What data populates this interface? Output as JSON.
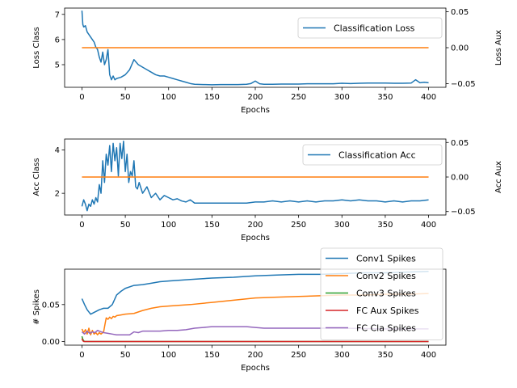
{
  "chart_data": [
    {
      "type": "line",
      "xlabel": "Epochs",
      "ylabel": "Loss Class",
      "ylabel_right": "Loss Aux",
      "xlim": [
        -20,
        420
      ],
      "ylim": [
        4.1,
        7.25
      ],
      "ylim_right": [
        -0.055,
        0.055
      ],
      "x_ticks": [
        0,
        50,
        100,
        150,
        200,
        250,
        300,
        350,
        400
      ],
      "y_ticks": [
        5,
        6,
        7
      ],
      "y_ticks_right": [
        "0.05",
        "0.00",
        "−0.05"
      ],
      "y_ticks_right_values": [
        0.05,
        0.0,
        -0.05
      ],
      "legend": {
        "entries": [
          "Classification Loss"
        ],
        "placement": "upper right"
      },
      "series": [
        {
          "name": "Classification Loss",
          "color": "#1f77b4",
          "axis": "left",
          "x": [
            0,
            1,
            2,
            4,
            6,
            8,
            10,
            12,
            14,
            16,
            18,
            20,
            22,
            24,
            26,
            28,
            30,
            32,
            34,
            36,
            38,
            40,
            45,
            50,
            55,
            60,
            65,
            70,
            75,
            80,
            85,
            90,
            95,
            100,
            105,
            110,
            115,
            120,
            125,
            130,
            140,
            150,
            160,
            170,
            180,
            190,
            195,
            200,
            205,
            210,
            220,
            230,
            240,
            250,
            260,
            270,
            280,
            290,
            300,
            310,
            320,
            330,
            340,
            350,
            360,
            370,
            380,
            385,
            390,
            395,
            400
          ],
          "y": [
            7.15,
            6.6,
            6.5,
            6.55,
            6.3,
            6.2,
            6.1,
            6.0,
            5.9,
            5.7,
            5.6,
            5.3,
            5.1,
            5.5,
            5.0,
            5.2,
            5.6,
            4.6,
            4.4,
            4.55,
            4.4,
            4.45,
            4.5,
            4.6,
            4.8,
            5.2,
            5.0,
            4.9,
            4.8,
            4.7,
            4.6,
            4.55,
            4.55,
            4.5,
            4.45,
            4.4,
            4.35,
            4.3,
            4.25,
            4.22,
            4.21,
            4.2,
            4.21,
            4.21,
            4.21,
            4.22,
            4.25,
            4.35,
            4.24,
            4.22,
            4.22,
            4.23,
            4.23,
            4.23,
            4.24,
            4.24,
            4.24,
            4.24,
            4.26,
            4.25,
            4.26,
            4.27,
            4.27,
            4.27,
            4.26,
            4.26,
            4.27,
            4.4,
            4.28,
            4.3,
            4.28
          ]
        },
        {
          "name": "Loss Aux",
          "color": "#ff7f0e",
          "axis": "right",
          "x": [
            0,
            400
          ],
          "y": [
            0.0,
            0.0
          ]
        }
      ]
    },
    {
      "type": "line",
      "xlabel": "Epochs",
      "ylabel": "Acc Class",
      "ylabel_right": "Acc Aux",
      "xlim": [
        -20,
        420
      ],
      "ylim": [
        1.0,
        4.5
      ],
      "ylim_right": [
        -0.055,
        0.055
      ],
      "x_ticks": [
        0,
        50,
        100,
        150,
        200,
        250,
        300,
        350,
        400
      ],
      "y_ticks": [
        2,
        4
      ],
      "y_ticks_right": [
        "0.05",
        "0.00",
        "−0.05"
      ],
      "y_ticks_right_values": [
        0.05,
        0.0,
        -0.05
      ],
      "legend": {
        "entries": [
          "Classification Acc"
        ],
        "placement": "upper right"
      },
      "series": [
        {
          "name": "Classification Acc",
          "color": "#1f77b4",
          "axis": "left",
          "x": [
            0,
            2,
            4,
            6,
            8,
            10,
            12,
            14,
            16,
            18,
            20,
            22,
            24,
            26,
            28,
            30,
            32,
            34,
            36,
            38,
            40,
            42,
            44,
            46,
            48,
            50,
            52,
            54,
            56,
            58,
            60,
            62,
            64,
            66,
            70,
            75,
            80,
            85,
            90,
            95,
            100,
            105,
            110,
            115,
            120,
            125,
            130,
            140,
            150,
            160,
            170,
            180,
            190,
            200,
            210,
            220,
            230,
            240,
            250,
            260,
            270,
            280,
            290,
            300,
            310,
            320,
            330,
            340,
            350,
            360,
            370,
            380,
            390,
            400
          ],
          "y": [
            1.4,
            1.7,
            1.5,
            1.2,
            1.5,
            1.4,
            1.7,
            1.5,
            1.8,
            1.6,
            2.4,
            2.0,
            3.5,
            2.5,
            3.8,
            3.3,
            4.2,
            3.0,
            4.3,
            3.5,
            4.1,
            2.8,
            4.3,
            3.6,
            4.4,
            3.0,
            3.8,
            2.5,
            3.0,
            2.8,
            3.5,
            2.3,
            2.2,
            2.5,
            2.0,
            2.3,
            1.8,
            2.0,
            1.7,
            1.9,
            1.8,
            1.7,
            1.75,
            1.65,
            1.6,
            1.7,
            1.55,
            1.55,
            1.55,
            1.55,
            1.55,
            1.55,
            1.55,
            1.6,
            1.6,
            1.65,
            1.6,
            1.65,
            1.6,
            1.65,
            1.6,
            1.65,
            1.65,
            1.7,
            1.65,
            1.7,
            1.65,
            1.65,
            1.6,
            1.65,
            1.6,
            1.65,
            1.65,
            1.7
          ]
        },
        {
          "name": "Acc Aux",
          "color": "#ff7f0e",
          "axis": "right",
          "x": [
            0,
            400
          ],
          "y": [
            0.0,
            0.0
          ]
        }
      ]
    },
    {
      "type": "line",
      "xlabel": "Epochs",
      "ylabel": "# Spikes",
      "xlim": [
        -20,
        420
      ],
      "ylim": [
        -0.005,
        0.098
      ],
      "x_ticks": [
        0,
        50,
        100,
        150,
        200,
        250,
        300,
        350,
        400
      ],
      "y_ticks": [
        0.0,
        0.05
      ],
      "y_tick_labels": [
        "0.00",
        "0.05"
      ],
      "legend": {
        "entries": [
          "Conv1 Spikes",
          "Conv2 Spikes",
          "Conv3 Spikes",
          "FC Aux Spikes",
          "FC Cla Spikes"
        ],
        "placement": "upper right"
      },
      "series": [
        {
          "name": "Conv1 Spikes",
          "color": "#1f77b4",
          "x": [
            0,
            3,
            6,
            10,
            15,
            20,
            25,
            30,
            35,
            40,
            45,
            50,
            60,
            70,
            80,
            90,
            100,
            125,
            150,
            175,
            200,
            225,
            250,
            275,
            300,
            325,
            350,
            375,
            400
          ],
          "y": [
            0.058,
            0.05,
            0.043,
            0.037,
            0.04,
            0.043,
            0.045,
            0.045,
            0.05,
            0.063,
            0.068,
            0.072,
            0.076,
            0.077,
            0.079,
            0.081,
            0.082,
            0.084,
            0.086,
            0.087,
            0.089,
            0.09,
            0.091,
            0.091,
            0.092,
            0.093,
            0.093,
            0.094,
            0.095
          ]
        },
        {
          "name": "Conv2 Spikes",
          "color": "#ff7f0e",
          "x": [
            0,
            2,
            4,
            6,
            8,
            10,
            12,
            14,
            16,
            18,
            20,
            22,
            25,
            27,
            28,
            30,
            32,
            34,
            36,
            38,
            40,
            45,
            50,
            60,
            70,
            80,
            90,
            100,
            125,
            150,
            175,
            200,
            225,
            250,
            275,
            300,
            325,
            350,
            375,
            400
          ],
          "y": [
            0.017,
            0.012,
            0.016,
            0.01,
            0.018,
            0.009,
            0.015,
            0.01,
            0.012,
            0.009,
            0.012,
            0.01,
            0.013,
            0.026,
            0.032,
            0.03,
            0.033,
            0.031,
            0.034,
            0.033,
            0.035,
            0.036,
            0.037,
            0.038,
            0.042,
            0.045,
            0.047,
            0.048,
            0.05,
            0.053,
            0.056,
            0.059,
            0.06,
            0.061,
            0.062,
            0.063,
            0.063,
            0.064,
            0.064,
            0.065
          ]
        },
        {
          "name": "Conv3 Spikes",
          "color": "#2ca02c",
          "x": [
            0,
            1,
            2,
            3,
            4,
            5,
            50,
            100,
            150,
            200,
            250,
            300,
            350,
            400
          ],
          "y": [
            0.007,
            0.003,
            0.001,
            0.0,
            0.0,
            0.0,
            0.0,
            0.0,
            0.0,
            0.0,
            0.0,
            0.0,
            0.0,
            0.0
          ]
        },
        {
          "name": "FC Aux Spikes",
          "color": "#d62728",
          "x": [
            0,
            1,
            2,
            3,
            50,
            100,
            150,
            200,
            250,
            300,
            350,
            400
          ],
          "y": [
            0.004,
            0.001,
            0.0,
            0.0,
            0.0,
            0.0,
            0.0,
            0.0,
            0.0,
            0.0,
            0.0,
            0.0
          ]
        },
        {
          "name": "FC Cla Spikes",
          "color": "#9467bd",
          "x": [
            0,
            3,
            6,
            9,
            12,
            15,
            18,
            20,
            25,
            30,
            35,
            40,
            45,
            50,
            55,
            60,
            65,
            70,
            80,
            90,
            100,
            110,
            120,
            130,
            140,
            150,
            160,
            170,
            180,
            190,
            200,
            210,
            220,
            250,
            300,
            350,
            400
          ],
          "y": [
            0.013,
            0.01,
            0.014,
            0.011,
            0.013,
            0.012,
            0.015,
            0.014,
            0.012,
            0.011,
            0.01,
            0.009,
            0.009,
            0.009,
            0.009,
            0.013,
            0.012,
            0.014,
            0.014,
            0.014,
            0.015,
            0.015,
            0.016,
            0.018,
            0.019,
            0.02,
            0.02,
            0.02,
            0.02,
            0.02,
            0.019,
            0.018,
            0.018,
            0.018,
            0.018,
            0.017,
            0.017
          ]
        }
      ]
    }
  ]
}
